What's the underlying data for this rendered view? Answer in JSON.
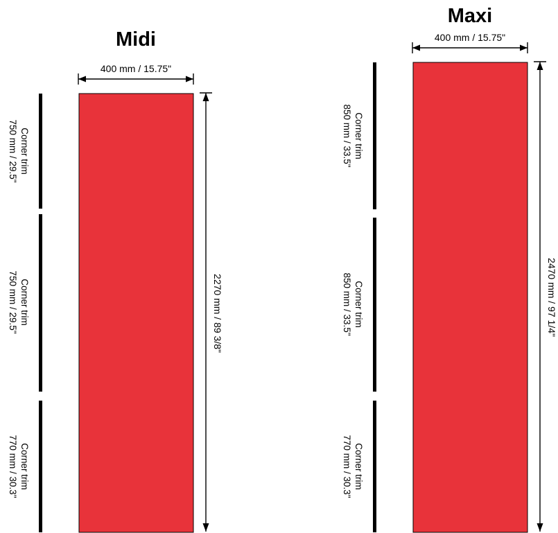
{
  "colors": {
    "panel": "#e8333a",
    "ink": "#000000"
  },
  "midi": {
    "title": "Midi",
    "width_label": "400 mm / 15.75\"",
    "height_label": "2270 mm / 89 3/8\"",
    "trims": [
      {
        "name": "Corner trim",
        "size": "750 mm / 29.5\""
      },
      {
        "name": "Corner trim",
        "size": "750 mm / 29.5\""
      },
      {
        "name": "Corner trim",
        "size": "770 mm / 30.3\""
      }
    ]
  },
  "maxi": {
    "title": "Maxi",
    "width_label": "400 mm / 15.75\"",
    "height_label": "2470 mm / 97 1/4\"",
    "trims": [
      {
        "name": "Corner trim",
        "size": "850 mm / 33.5\""
      },
      {
        "name": "Corner trim",
        "size": "850 mm / 33.5\""
      },
      {
        "name": "Corner trim",
        "size": "770 mm / 30.3\""
      }
    ]
  }
}
